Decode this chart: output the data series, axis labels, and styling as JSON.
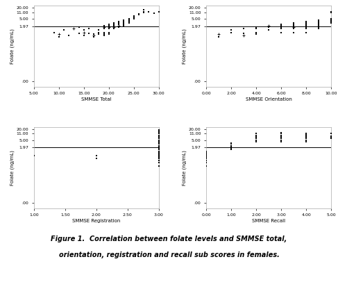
{
  "figure_caption": "Figure 1.  Correlation between folate levels and SMMSE total,\norientation, registration and recall sub scores in females.",
  "plots": [
    {
      "xlabel": "SMMSE Total",
      "ylabel": "Folate (ng/mL)",
      "xlim": [
        5,
        30
      ],
      "xticks": [
        5.0,
        10.0,
        15.0,
        20.0,
        25.0,
        30.0
      ],
      "ytick_labels": [
        "20.00",
        "11.00",
        "5.00",
        "1.97",
        ".00"
      ],
      "ytick_vals": [
        20000,
        11000,
        5000,
        1970,
        2
      ],
      "ylim": [
        1,
        25000
      ],
      "hline_y": 1970,
      "scatter_x": [
        9,
        10,
        10,
        11,
        12,
        13,
        14,
        14,
        15,
        15,
        15,
        16,
        16,
        17,
        17,
        17,
        18,
        18,
        18,
        18,
        19,
        19,
        19,
        19,
        19,
        19,
        20,
        20,
        20,
        20,
        20,
        20,
        21,
        21,
        21,
        21,
        21,
        22,
        22,
        22,
        22,
        22,
        23,
        23,
        23,
        23,
        23,
        24,
        24,
        24,
        24,
        25,
        25,
        25,
        26,
        26,
        27,
        27,
        27,
        28,
        29,
        30
      ],
      "scatter_y": [
        900,
        500,
        700,
        1200,
        600,
        1500,
        800,
        1800,
        600,
        900,
        1200,
        1500,
        800,
        500,
        700,
        600,
        1200,
        900,
        800,
        700,
        2000,
        1800,
        1500,
        900,
        700,
        600,
        2500,
        2000,
        1800,
        1500,
        900,
        700,
        3000,
        2500,
        2000,
        1800,
        1500,
        3500,
        3000,
        2500,
        2000,
        1800,
        4000,
        3500,
        3000,
        2500,
        2000,
        5000,
        4000,
        3500,
        3000,
        6000,
        7000,
        5000,
        8000,
        9000,
        12000,
        15000,
        11000,
        11500,
        10000,
        11500
      ],
      "scatter_marker": [
        "s",
        "s",
        "+",
        "s",
        "s",
        "+",
        "s",
        "s",
        "s",
        "+",
        "s",
        "s",
        "s",
        "s",
        "s",
        "+",
        "s",
        "s",
        "s",
        "s",
        "s",
        "+",
        "s",
        "s",
        "s",
        "s",
        "s",
        "s",
        "+",
        "s",
        "s",
        "s",
        "s",
        "s",
        "s",
        "+",
        "s",
        "s",
        "s",
        "s",
        "+",
        "s",
        "s",
        "s",
        "s",
        "s",
        "s",
        "s",
        "s",
        "s",
        "s",
        "s",
        "s",
        "s",
        "s",
        "s",
        "s",
        "s",
        "s",
        "s",
        "s",
        "s"
      ]
    },
    {
      "xlabel": "SMMSE Orientation",
      "ylabel": "Folate (ng/mL)",
      "xlim": [
        0,
        10
      ],
      "xticks": [
        0.0,
        2.0,
        4.0,
        6.0,
        8.0,
        10.0
      ],
      "ytick_labels": [
        "20.00",
        "11.00",
        "5.00",
        "1.97",
        ".00"
      ],
      "ytick_vals": [
        20000,
        11000,
        5000,
        1970,
        2
      ],
      "ylim": [
        1,
        25000
      ],
      "hline_y": 1970,
      "scatter_x": [
        1,
        1,
        2,
        2,
        3,
        3,
        3,
        4,
        4,
        4,
        4,
        5,
        5,
        5,
        6,
        6,
        6,
        6,
        6,
        7,
        7,
        7,
        7,
        7,
        7,
        8,
        8,
        8,
        8,
        8,
        8,
        8,
        9,
        9,
        9,
        9,
        9,
        9,
        9,
        10,
        10,
        10,
        10,
        10,
        10
      ],
      "scatter_y": [
        500,
        700,
        900,
        1200,
        1500,
        800,
        600,
        1800,
        1500,
        900,
        700,
        2000,
        1800,
        1200,
        2500,
        2000,
        1800,
        1500,
        900,
        3000,
        2500,
        2000,
        1800,
        1500,
        900,
        3500,
        3000,
        2500,
        2000,
        1800,
        1500,
        900,
        4000,
        3500,
        3000,
        2500,
        2000,
        1800,
        1500,
        5000,
        4000,
        3500,
        3000,
        11500,
        11000
      ],
      "scatter_marker": [
        "s",
        "+",
        "s",
        "s",
        "s",
        "s",
        "+",
        "s",
        "s",
        "s",
        "s",
        "+",
        "s",
        "s",
        "s",
        "s",
        "s",
        "s",
        "s",
        "s",
        "s",
        "s",
        "+",
        "s",
        "s",
        "s",
        "s",
        "s",
        "s",
        "s",
        "s",
        "s",
        "s",
        "s",
        "s",
        "s",
        "s",
        "s",
        "s",
        "s",
        "s",
        "s",
        "s",
        "s",
        "s"
      ]
    },
    {
      "xlabel": "SMMSE Registration",
      "ylabel": "Folate (ng/mL)",
      "xlim": [
        1,
        3
      ],
      "xticks": [
        1.0,
        1.5,
        2.0,
        2.5,
        3.0
      ],
      "ytick_labels": [
        "20.00",
        "11.00",
        "5.00",
        "1.97",
        ".00"
      ],
      "ytick_vals": [
        20000,
        11000,
        5000,
        1970,
        2
      ],
      "ylim": [
        1,
        25000
      ],
      "hline_y": 1970,
      "scatter_x": [
        1.0,
        2.0,
        2.0,
        3.0,
        3.0,
        3.0,
        3.0,
        3.0,
        3.0,
        3.0,
        3.0,
        3.0,
        3.0,
        3.0,
        3.0,
        3.0,
        3.0,
        3.0,
        3.0,
        3.0,
        3.0,
        3.0,
        3.0,
        3.0,
        3.0,
        3.0,
        3.0,
        3.0,
        3.0,
        3.0,
        3.0,
        3.0,
        3.0
      ],
      "scatter_y": [
        700,
        700,
        500,
        200,
        300,
        400,
        500,
        600,
        700,
        800,
        900,
        1000,
        1200,
        1500,
        1800,
        2000,
        2500,
        3000,
        3500,
        4000,
        5000,
        6000,
        7000,
        8000,
        9000,
        11000,
        12000,
        13000,
        14000,
        15000,
        16000,
        17000,
        18000
      ],
      "scatter_marker": [
        "s",
        "s",
        "s",
        "s",
        "s",
        "s",
        "s",
        "s",
        "s",
        "s",
        "s",
        "s",
        "s",
        "s",
        "s",
        "s",
        "s",
        "s",
        "s",
        "s",
        "s",
        "s",
        "s",
        "s",
        "s",
        "s",
        "s",
        "s",
        "s",
        "s",
        "s",
        "s",
        "s"
      ]
    },
    {
      "xlabel": "SMMSE Recall",
      "ylabel": "Folate (ng/mL)",
      "xlim": [
        0,
        5
      ],
      "xticks": [
        0.0,
        1.0,
        2.0,
        3.0,
        4.0,
        5.0
      ],
      "ytick_labels": [
        "20.00",
        "11.00",
        "5.00",
        "1.97",
        ".00"
      ],
      "ytick_vals": [
        20000,
        11000,
        5000,
        1970,
        2
      ],
      "ylim": [
        1,
        25000
      ],
      "hline_y": 1970,
      "scatter_x": [
        0,
        0,
        0,
        0,
        0,
        0,
        0,
        0,
        0,
        0,
        1,
        1,
        1,
        1,
        1,
        1,
        2,
        2,
        2,
        2,
        2,
        2,
        2,
        2,
        3,
        3,
        3,
        3,
        3,
        3,
        3,
        3,
        3,
        4,
        4,
        4,
        4,
        4,
        4,
        4,
        4,
        5,
        5,
        5,
        5,
        5
      ],
      "scatter_y": [
        200,
        300,
        400,
        500,
        600,
        700,
        800,
        900,
        1000,
        1200,
        1500,
        1800,
        2000,
        2500,
        3000,
        3500,
        4000,
        4500,
        5000,
        6000,
        7000,
        8000,
        9000,
        11000,
        4000,
        4500,
        5000,
        6000,
        7000,
        8000,
        9000,
        11000,
        12000,
        4000,
        5000,
        6000,
        7000,
        8000,
        9000,
        10000,
        11000,
        6000,
        7000,
        8000,
        11000,
        11500
      ],
      "scatter_marker": [
        "s",
        "s",
        "s",
        "s",
        "s",
        "s",
        "s",
        "s",
        "s",
        "s",
        "s",
        "s",
        "s",
        "s",
        "s",
        "s",
        "s",
        "s",
        "s",
        "s",
        "s",
        "s",
        "s",
        "s",
        "s",
        "s",
        "s",
        "s",
        "s",
        "s",
        "s",
        "s",
        "s",
        "s",
        "s",
        "s",
        "s",
        "s",
        "s",
        "s",
        "s",
        "s",
        "s",
        "s",
        "s",
        "s"
      ]
    }
  ],
  "background_color": "#ffffff",
  "scatter_color": "#000000",
  "hline_color": "#000000",
  "tick_fontsize": 4.5,
  "label_fontsize": 5.0,
  "caption_fontsize": 7.0
}
